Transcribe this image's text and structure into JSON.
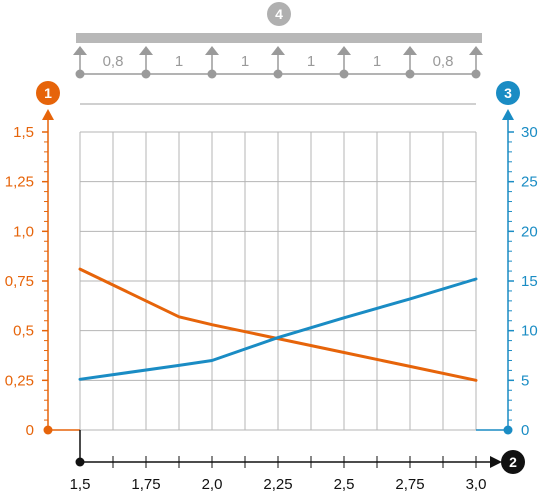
{
  "chart_data": {
    "type": "line",
    "x": [
      1.5,
      1.875,
      2.0,
      2.25,
      2.5,
      2.75,
      3.0
    ],
    "x_ticks": [
      1.5,
      1.75,
      2.0,
      2.25,
      2.5,
      2.75,
      3.0
    ],
    "x_tick_labels": [
      "1,5",
      "1,75",
      "2,0",
      "2,25",
      "2,5",
      "2,75",
      "3,0"
    ],
    "xlim": [
      1.5,
      3.0
    ],
    "y_left": {
      "lim": [
        0,
        1.5
      ],
      "ticks": [
        0,
        0.25,
        0.5,
        0.75,
        1.0,
        1.25,
        1.5
      ],
      "tick_labels": [
        "0",
        "0,25",
        "0,5",
        "0,75",
        "1,0",
        "1,25",
        "1,5"
      ],
      "color": "#e6640a",
      "badge": "1"
    },
    "y_right": {
      "lim": [
        0,
        30
      ],
      "ticks": [
        0,
        5,
        10,
        15,
        20,
        25,
        30
      ],
      "tick_labels": [
        "0",
        "5",
        "10",
        "15",
        "20",
        "25",
        "30"
      ],
      "color": "#1a8cc4",
      "badge": "3"
    },
    "x_badge": "2",
    "series": [
      {
        "axis": "left",
        "color": "#e6640a",
        "x": [
          1.5,
          1.875,
          2.0,
          2.25,
          2.5,
          2.75,
          3.0
        ],
        "values": [
          0.81,
          0.57,
          0.53,
          0.46,
          0.39,
          0.32,
          0.25
        ]
      },
      {
        "axis": "right",
        "color": "#1a8cc4",
        "x": [
          1.5,
          1.875,
          2.0,
          2.25,
          2.5,
          2.75,
          3.0
        ],
        "values": [
          5.1,
          6.5,
          7.0,
          9.3,
          11.3,
          13.2,
          15.2
        ]
      }
    ],
    "grid": true,
    "beam": {
      "badge": "4",
      "span_labels": [
        "0,8",
        "1",
        "1",
        "1",
        "1",
        "0,8"
      ],
      "color": "#9a9a9a"
    }
  }
}
